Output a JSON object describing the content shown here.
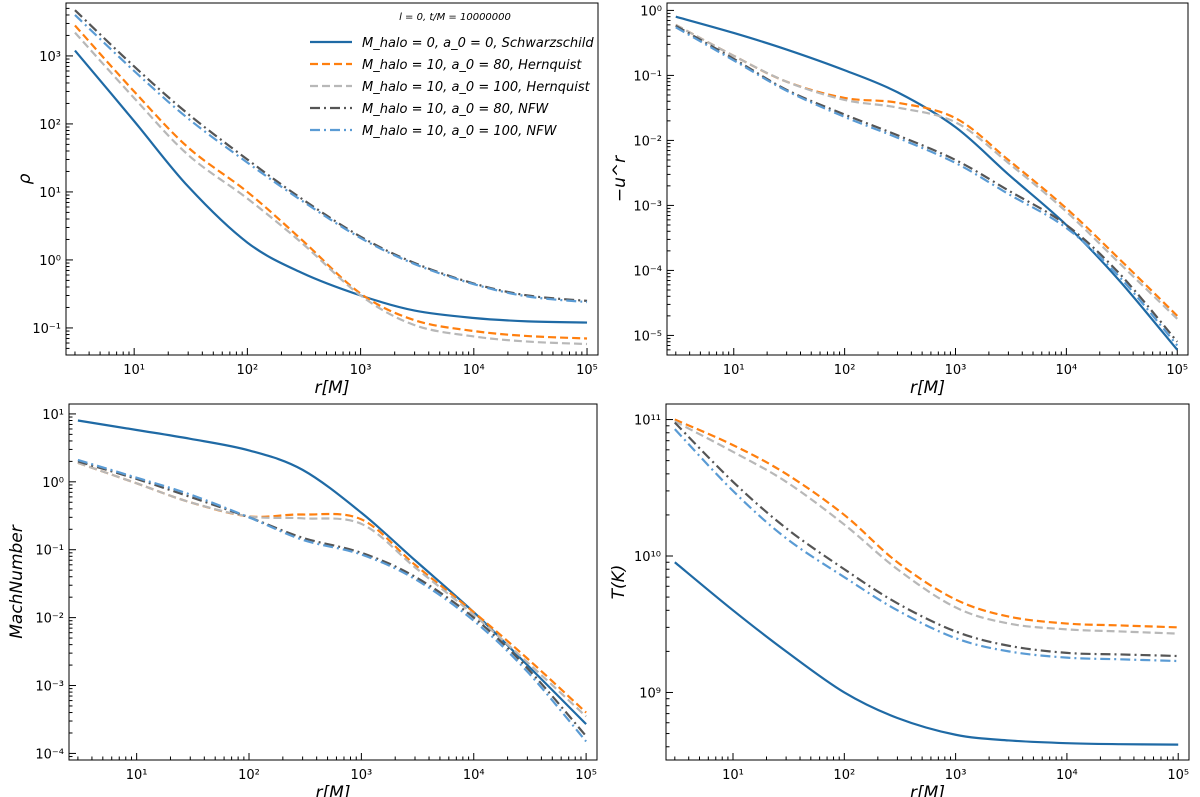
{
  "chart_data": [
    {
      "type": "line",
      "scale": "log-log",
      "xlabel": "r[M]",
      "ylabel": "ρ",
      "xlim": [
        2.5,
        125000
      ],
      "ylim": [
        0.04,
        6000
      ],
      "xticks": [
        {
          "v": 10,
          "label": "10¹"
        },
        {
          "v": 100,
          "label": "10²"
        },
        {
          "v": 1000,
          "label": "10³"
        },
        {
          "v": 10000,
          "label": "10⁴"
        },
        {
          "v": 100000,
          "label": "10⁵"
        }
      ],
      "yticks": [
        {
          "v": 0.1,
          "label": "10⁻¹"
        },
        {
          "v": 1,
          "label": "10⁰"
        },
        {
          "v": 10,
          "label": "10¹"
        },
        {
          "v": 100,
          "label": "10²"
        },
        {
          "v": 1000,
          "label": "10³"
        }
      ],
      "legend": {
        "title": "l = 0, t/M = 10000000",
        "entries": [
          "M_halo = 0, a_0 = 0, Schwarzschild",
          "M_halo = 10, a_0 = 80, Hernquist",
          "M_halo = 10, a_0 = 100, Hernquist",
          "M_halo = 10, a_0 = 80, NFW",
          "M_halo = 10, a_0 = 100, NFW"
        ]
      },
      "series": [
        {
          "name": "M_halo = 0, a_0 = 0, Schwarzschild",
          "color": "#1f6aa5",
          "style": "solid",
          "x": [
            3,
            10,
            30,
            100,
            300,
            1000,
            3000,
            10000,
            30000,
            100000
          ],
          "y": [
            1200,
            110,
            12,
            1.8,
            0.65,
            0.3,
            0.18,
            0.14,
            0.125,
            0.12
          ]
        },
        {
          "name": "M_halo = 10, a_0 = 80, Hernquist",
          "color": "#ff7f0e",
          "style": "dashed",
          "x": [
            3,
            10,
            30,
            100,
            300,
            1000,
            3000,
            10000,
            30000,
            100000
          ],
          "y": [
            2800,
            300,
            45,
            10,
            2.0,
            0.32,
            0.13,
            0.09,
            0.076,
            0.07
          ]
        },
        {
          "name": "M_halo = 10, a_0 = 100, Hernquist",
          "color": "#b8b8b8",
          "style": "dashed",
          "x": [
            3,
            10,
            30,
            100,
            300,
            1000,
            3000,
            10000,
            30000,
            100000
          ],
          "y": [
            2200,
            240,
            35,
            8,
            1.8,
            0.3,
            0.11,
            0.075,
            0.063,
            0.058
          ]
        },
        {
          "name": "M_halo = 10, a_0 = 80, NFW",
          "color": "#555555",
          "style": "dashdot",
          "x": [
            3,
            10,
            30,
            100,
            300,
            1000,
            3000,
            10000,
            30000,
            100000
          ],
          "y": [
            4700,
            700,
            140,
            30,
            8,
            2.2,
            0.9,
            0.45,
            0.3,
            0.25
          ]
        },
        {
          "name": "M_halo = 10, a_0 = 100, NFW",
          "color": "#5a9bd4",
          "style": "dashdot",
          "x": [
            3,
            10,
            30,
            100,
            300,
            1000,
            3000,
            10000,
            30000,
            100000
          ],
          "y": [
            4000,
            600,
            120,
            27,
            7.5,
            2.1,
            0.87,
            0.44,
            0.29,
            0.24
          ]
        }
      ]
    },
    {
      "type": "line",
      "scale": "log-log",
      "xlabel": "r[M]",
      "ylabel": "−u^r",
      "xlim": [
        2.5,
        125000
      ],
      "ylim": [
        5e-06,
        1.3
      ],
      "xticks": [
        {
          "v": 10,
          "label": "10¹"
        },
        {
          "v": 100,
          "label": "10²"
        },
        {
          "v": 1000,
          "label": "10³"
        },
        {
          "v": 10000,
          "label": "10⁴"
        },
        {
          "v": 100000,
          "label": "10⁵"
        }
      ],
      "yticks": [
        {
          "v": 1e-05,
          "label": "10⁻⁵"
        },
        {
          "v": 0.0001,
          "label": "10⁻⁴"
        },
        {
          "v": 0.001,
          "label": "10⁻³"
        },
        {
          "v": 0.01,
          "label": "10⁻²"
        },
        {
          "v": 0.1,
          "label": "10⁻¹"
        },
        {
          "v": 1,
          "label": "10⁰"
        }
      ],
      "series": [
        {
          "name": "M_halo = 0, a_0 = 0, Schwarzschild",
          "color": "#1f6aa5",
          "style": "solid",
          "x": [
            3,
            10,
            30,
            100,
            300,
            1000,
            3000,
            10000,
            30000,
            100000
          ],
          "y": [
            0.8,
            0.45,
            0.25,
            0.12,
            0.055,
            0.016,
            0.003,
            0.0005,
            7e-05,
            6e-06
          ]
        },
        {
          "name": "M_halo = 10, a_0 = 80, Hernquist",
          "color": "#ff7f0e",
          "style": "dashed",
          "x": [
            3,
            10,
            30,
            100,
            300,
            1000,
            3000,
            10000,
            30000,
            100000
          ],
          "y": [
            0.6,
            0.2,
            0.08,
            0.045,
            0.038,
            0.022,
            0.005,
            0.0009,
            0.00015,
            2e-05
          ]
        },
        {
          "name": "M_halo = 10, a_0 = 100, Hernquist",
          "color": "#b8b8b8",
          "style": "dashed",
          "x": [
            3,
            10,
            30,
            100,
            300,
            1000,
            3000,
            10000,
            30000,
            100000
          ],
          "y": [
            0.6,
            0.2,
            0.08,
            0.042,
            0.032,
            0.019,
            0.0045,
            0.0008,
            0.00013,
            1.8e-05
          ]
        },
        {
          "name": "M_halo = 10, a_0 = 80, NFW",
          "color": "#555555",
          "style": "dashdot",
          "x": [
            3,
            10,
            30,
            100,
            300,
            1000,
            3000,
            10000,
            30000,
            100000
          ],
          "y": [
            0.58,
            0.18,
            0.06,
            0.025,
            0.012,
            0.005,
            0.0017,
            0.0005,
            9e-05,
            8e-06
          ]
        },
        {
          "name": "M_halo = 10, a_0 = 100, NFW",
          "color": "#5a9bd4",
          "style": "dashdot",
          "x": [
            3,
            10,
            30,
            100,
            300,
            1000,
            3000,
            10000,
            30000,
            100000
          ],
          "y": [
            0.55,
            0.17,
            0.058,
            0.023,
            0.011,
            0.0045,
            0.0015,
            0.00045,
            8e-05,
            7e-06
          ]
        }
      ]
    },
    {
      "type": "line",
      "scale": "log-log",
      "xlabel": "r[M]",
      "ylabel": "MachNumber",
      "xlim": [
        2.5,
        125000
      ],
      "ylim": [
        8e-05,
        14
      ],
      "xticks": [
        {
          "v": 10,
          "label": "10¹"
        },
        {
          "v": 100,
          "label": "10²"
        },
        {
          "v": 1000,
          "label": "10³"
        },
        {
          "v": 10000,
          "label": "10⁴"
        },
        {
          "v": 100000,
          "label": "10⁵"
        }
      ],
      "yticks": [
        {
          "v": 0.0001,
          "label": "10⁻⁴"
        },
        {
          "v": 0.001,
          "label": "10⁻³"
        },
        {
          "v": 0.01,
          "label": "10⁻²"
        },
        {
          "v": 0.1,
          "label": "10⁻¹"
        },
        {
          "v": 1,
          "label": "10⁰"
        },
        {
          "v": 10,
          "label": "10¹"
        }
      ],
      "series": [
        {
          "name": "M_halo = 0, a_0 = 0, Schwarzschild",
          "color": "#1f6aa5",
          "style": "solid",
          "x": [
            3,
            10,
            30,
            100,
            300,
            1000,
            3000,
            10000,
            30000,
            100000
          ],
          "y": [
            8,
            5.8,
            4.3,
            2.9,
            1.5,
            0.35,
            0.07,
            0.012,
            0.002,
            0.00027
          ]
        },
        {
          "name": "M_halo = 10, a_0 = 80, Hernquist",
          "color": "#ff7f0e",
          "style": "dashed",
          "x": [
            3,
            10,
            30,
            100,
            300,
            1000,
            3000,
            10000,
            30000,
            100000
          ],
          "y": [
            1.9,
            0.95,
            0.5,
            0.31,
            0.33,
            0.28,
            0.06,
            0.012,
            0.0025,
            0.0004
          ]
        },
        {
          "name": "M_halo = 10, a_0 = 100, Hernquist",
          "color": "#b8b8b8",
          "style": "dashed",
          "x": [
            3,
            10,
            30,
            100,
            300,
            1000,
            3000,
            10000,
            30000,
            100000
          ],
          "y": [
            1.9,
            0.95,
            0.5,
            0.31,
            0.29,
            0.24,
            0.055,
            0.011,
            0.0022,
            0.00035
          ]
        },
        {
          "name": "M_halo = 10, a_0 = 80, NFW",
          "color": "#555555",
          "style": "dashdot",
          "x": [
            3,
            10,
            30,
            100,
            300,
            1000,
            3000,
            10000,
            30000,
            100000
          ],
          "y": [
            2.0,
            1.1,
            0.6,
            0.3,
            0.15,
            0.09,
            0.04,
            0.01,
            0.0018,
            0.00018
          ]
        },
        {
          "name": "M_halo = 10, a_0 = 100, NFW",
          "color": "#5a9bd4",
          "style": "dashdot",
          "x": [
            3,
            10,
            30,
            100,
            300,
            1000,
            3000,
            10000,
            30000,
            100000
          ],
          "y": [
            2.1,
            1.15,
            0.65,
            0.3,
            0.14,
            0.085,
            0.037,
            0.009,
            0.0016,
            0.00015
          ]
        }
      ]
    },
    {
      "type": "line",
      "scale": "log-log",
      "xlabel": "r[M]",
      "ylabel": "T(K)",
      "xlim": [
        2.5,
        125000
      ],
      "ylim": [
        320000000,
        130000000000
      ],
      "xticks": [
        {
          "v": 10,
          "label": "10¹"
        },
        {
          "v": 100,
          "label": "10²"
        },
        {
          "v": 1000,
          "label": "10³"
        },
        {
          "v": 10000,
          "label": "10⁴"
        },
        {
          "v": 100000,
          "label": "10⁵"
        }
      ],
      "yticks": [
        {
          "v": 1000000000,
          "label": "10⁹"
        },
        {
          "v": 10000000000,
          "label": "10¹⁰"
        },
        {
          "v": 100000000000,
          "label": "10¹¹"
        }
      ],
      "series": [
        {
          "name": "M_halo = 0, a_0 = 0, Schwarzschild",
          "color": "#1f6aa5",
          "style": "solid",
          "x": [
            3,
            10,
            30,
            100,
            300,
            1000,
            3000,
            10000,
            30000,
            100000
          ],
          "y": [
            9000000000,
            4000000000,
            2000000000,
            1000000000,
            650000000,
            490000000,
            445000000,
            425000000,
            418000000,
            415000000
          ]
        },
        {
          "name": "M_halo = 10, a_0 = 80, Hernquist",
          "color": "#ff7f0e",
          "style": "dashed",
          "x": [
            3,
            10,
            30,
            100,
            300,
            1000,
            3000,
            10000,
            30000,
            100000
          ],
          "y": [
            100000000000,
            65000000000,
            40000000000,
            20000000000,
            9000000000,
            4800000000,
            3600000000,
            3200000000,
            3100000000,
            3000000000
          ]
        },
        {
          "name": "M_halo = 10, a_0 = 100, Hernquist",
          "color": "#b8b8b8",
          "style": "dashed",
          "x": [
            3,
            10,
            30,
            100,
            300,
            1000,
            3000,
            10000,
            30000,
            100000
          ],
          "y": [
            97000000000,
            58000000000,
            35000000000,
            17000000000,
            8000000000,
            4200000000,
            3200000000,
            2900000000,
            2800000000,
            2700000000
          ]
        },
        {
          "name": "M_halo = 10, a_0 = 80, NFW",
          "color": "#555555",
          "style": "dashdot",
          "x": [
            3,
            10,
            30,
            100,
            300,
            1000,
            3000,
            10000,
            30000,
            100000
          ],
          "y": [
            95000000000,
            35000000000,
            16000000000,
            8000000000,
            4500000000,
            2800000000,
            2200000000,
            1950000000,
            1900000000,
            1850000000
          ]
        },
        {
          "name": "M_halo = 10, a_0 = 100, NFW",
          "color": "#5a9bd4",
          "style": "dashdot",
          "x": [
            3,
            10,
            30,
            100,
            300,
            1000,
            3000,
            10000,
            30000,
            100000
          ],
          "y": [
            85000000000,
            30000000000,
            13500000000,
            7000000000,
            4000000000,
            2500000000,
            2000000000,
            1800000000,
            1750000000,
            1700000000
          ]
        }
      ]
    }
  ]
}
